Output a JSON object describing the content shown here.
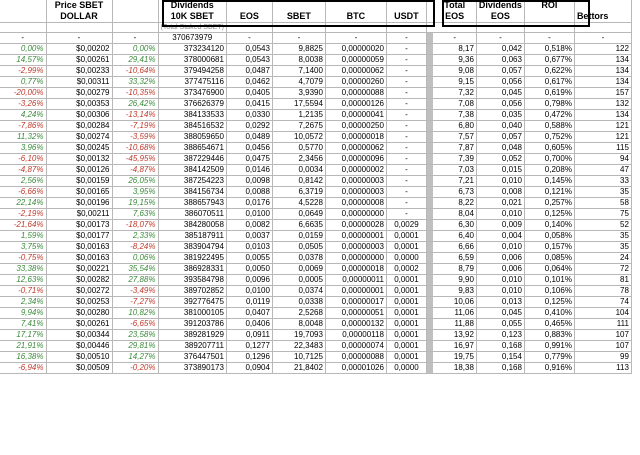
{
  "headers": {
    "price_line1": "Price SBET",
    "price_line2": "DOLLAR",
    "dividends_line1": "Dividends",
    "dividends_line2": "10K SBET",
    "eos": "EOS",
    "sbet": "SBET",
    "btc": "BTC",
    "usdt": "USDT",
    "total_line1": "Total",
    "total_line2": "EOS",
    "divs_eos_line1": "Dividends",
    "divs_eos_line2": "EOS",
    "roi": "ROI",
    "bettors": "Bettors",
    "staked_note": "(Total Staked SBET)"
  },
  "first_row": {
    "c1": "-",
    "c2": "-",
    "c3": "-",
    "staked": "370673979",
    "eos": "-",
    "sbet": "-",
    "btc": "-",
    "usdt": "-",
    "total": "-",
    "deos": "-",
    "roi": "-",
    "bettors": "-"
  },
  "rows": [
    [
      "0,00%",
      "$0,00202",
      "0,00%",
      "373234120",
      "0,0543",
      "9,8825",
      "0,00000020",
      "-",
      "8,17",
      "0,042",
      "0,518%",
      "122"
    ],
    [
      "14,57%",
      "$0,00261",
      "29,41%",
      "378000681",
      "0,0543",
      "8,0038",
      "0,00000059",
      "-",
      "9,36",
      "0,063",
      "0,677%",
      "134"
    ],
    [
      "-2,99%",
      "$0,00233",
      "-10,64%",
      "379494258",
      "0,0487",
      "7,1400",
      "0,00000062",
      "-",
      "9,08",
      "0,057",
      "0,622%",
      "134"
    ],
    [
      "0,77%",
      "$0,00311",
      "33,32%",
      "377475116",
      "0,0462",
      "4,7079",
      "0,00000260",
      "-",
      "9,15",
      "0,056",
      "0,617%",
      "134"
    ],
    [
      "-20,00%",
      "$0,00279",
      "-10,35%",
      "373476900",
      "0,0405",
      "3,9390",
      "0,00000088",
      "-",
      "7,32",
      "0,045",
      "0,619%",
      "157"
    ],
    [
      "-3,26%",
      "$0,00353",
      "26,42%",
      "376626379",
      "0,0415",
      "17,5594",
      "0,00000126",
      "-",
      "7,08",
      "0,056",
      "0,798%",
      "132"
    ],
    [
      "4,24%",
      "$0,00306",
      "-13,14%",
      "384133533",
      "0,0330",
      "1,2135",
      "0,00000041",
      "-",
      "7,38",
      "0,035",
      "0,472%",
      "134"
    ],
    [
      "-7,86%",
      "$0,00284",
      "-7,19%",
      "384516532",
      "0,0292",
      "7,2675",
      "0,00000250",
      "-",
      "6,80",
      "0,040",
      "0,588%",
      "121"
    ],
    [
      "11,32%",
      "$0,00274",
      "-3,59%",
      "388059650",
      "0,0489",
      "10,0572",
      "0,00000018",
      "-",
      "7,57",
      "0,057",
      "0,752%",
      "121"
    ],
    [
      "3,96%",
      "$0,00245",
      "-10,68%",
      "388654671",
      "0,0456",
      "0,5770",
      "0,00000062",
      "-",
      "7,87",
      "0,048",
      "0,605%",
      "115"
    ],
    [
      "-6,10%",
      "$0,00132",
      "-45,95%",
      "387229446",
      "0,0475",
      "2,3456",
      "0,00000096",
      "-",
      "7,39",
      "0,052",
      "0,700%",
      "94"
    ],
    [
      "-4,87%",
      "$0,00126",
      "-4,87%",
      "384142509",
      "0,0146",
      "0,0034",
      "0,00000002",
      "-",
      "7,03",
      "0,015",
      "0,208%",
      "47"
    ],
    [
      "2,56%",
      "$0,00159",
      "26,05%",
      "387254223",
      "0,0098",
      "0,8142",
      "0,00000003",
      "-",
      "7,21",
      "0,010",
      "0,145%",
      "33"
    ],
    [
      "-6,66%",
      "$0,00165",
      "3,95%",
      "384156734",
      "0,0088",
      "6,3719",
      "0,00000003",
      "-",
      "6,73",
      "0,008",
      "0,121%",
      "35"
    ],
    [
      "22,14%",
      "$0,00196",
      "19,15%",
      "388657943",
      "0,0176",
      "4,5228",
      "0,00000008",
      "-",
      "8,22",
      "0,021",
      "0,257%",
      "58"
    ],
    [
      "-2,19%",
      "$0,00211",
      "7,63%",
      "386070511",
      "0,0100",
      "0,0649",
      "0,00000000",
      "-",
      "8,04",
      "0,010",
      "0,125%",
      "75"
    ],
    [
      "-21,64%",
      "$0,00173",
      "-18,07%",
      "384280058",
      "0,0082",
      "6,6635",
      "0,00000028",
      "0,0029",
      "6,30",
      "0,009",
      "0,140%",
      "52"
    ],
    [
      "1,59%",
      "$0,00177",
      "2,33%",
      "385187911",
      "0,0037",
      "0,0159",
      "0,00000001",
      "0,0001",
      "6,40",
      "0,004",
      "0,058%",
      "35"
    ],
    [
      "3,75%",
      "$0,00163",
      "-8,24%",
      "383904794",
      "0,0103",
      "0,0505",
      "0,00000003",
      "0,0001",
      "6,66",
      "0,010",
      "0,157%",
      "35"
    ],
    [
      "-0,75%",
      "$0,00163",
      "0,06%",
      "381922495",
      "0,0055",
      "0,0378",
      "0,00000000",
      "0,0000",
      "6,59",
      "0,006",
      "0,085%",
      "24"
    ],
    [
      "33,38%",
      "$0,00221",
      "35,54%",
      "386928331",
      "0,0050",
      "0,0069",
      "0,00000018",
      "0,0002",
      "8,79",
      "0,006",
      "0,064%",
      "72"
    ],
    [
      "12,63%",
      "$0,00282",
      "27,88%",
      "393584798",
      "0,0096",
      "0,0005",
      "0,00000011",
      "0,0001",
      "9,90",
      "0,010",
      "0,101%",
      "81"
    ],
    [
      "-0,71%",
      "$0,00272",
      "-3,49%",
      "389702852",
      "0,0100",
      "0,0374",
      "0,00000001",
      "0,0001",
      "9,83",
      "0,010",
      "0,106%",
      "78"
    ],
    [
      "2,34%",
      "$0,00253",
      "-7,27%",
      "392776475",
      "0,0119",
      "0,0338",
      "0,00000017",
      "0,0001",
      "10,06",
      "0,013",
      "0,125%",
      "74"
    ],
    [
      "9,94%",
      "$0,00280",
      "10,82%",
      "381000105",
      "0,0407",
      "2,5268",
      "0,00000051",
      "0,0001",
      "11,06",
      "0,045",
      "0,410%",
      "104"
    ],
    [
      "7,41%",
      "$0,00261",
      "-6,65%",
      "391203786",
      "0,0406",
      "8,0048",
      "0,00000132",
      "0,0001",
      "11,88",
      "0,055",
      "0,465%",
      "111"
    ],
    [
      "17,17%",
      "$0,00344",
      "23,58%",
      "389281929",
      "0,0911",
      "19,7093",
      "0,00000118",
      "0,0001",
      "13,92",
      "0,123",
      "0,883%",
      "107"
    ],
    [
      "21,91%",
      "$0,00446",
      "29,81%",
      "389207711",
      "0,1277",
      "22,3483",
      "0,00000074",
      "0,0001",
      "16,97",
      "0,168",
      "0,991%",
      "107"
    ],
    [
      "16,38%",
      "$0,00510",
      "14,27%",
      "376447501",
      "0,1296",
      "10,7125",
      "0,00000088",
      "0,0001",
      "19,75",
      "0,154",
      "0,779%",
      "99"
    ],
    [
      "-6,94%",
      "$0,00509",
      "-0,20%",
      "373890173",
      "0,0904",
      "21,8402",
      "0,00001026",
      "0,0000",
      "18,38",
      "0,168",
      "0,916%",
      "113"
    ]
  ],
  "colors": {
    "positive": "#3a8a3a",
    "negative": "#c0392b",
    "grid": "#b8b8b8",
    "divider": "#bfbfbf"
  }
}
